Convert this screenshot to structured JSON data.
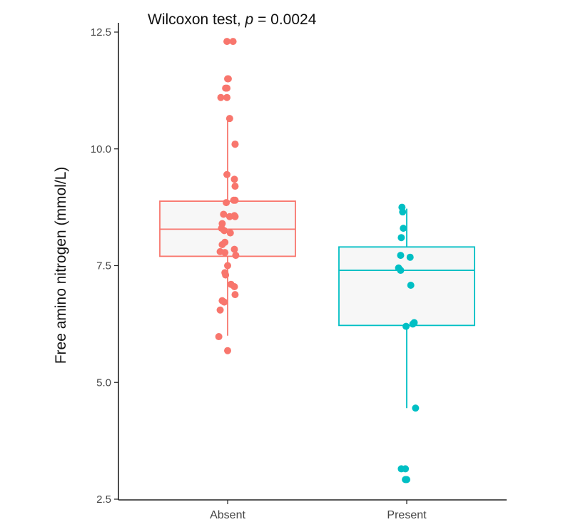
{
  "chart_data": {
    "type": "box",
    "title_prefix": "Wilcoxon test, ",
    "title_p": "p",
    "title_value": " = 0.0024",
    "xlabel": "",
    "ylabel": "Free amino nitrogen (mmol/L)",
    "ylim": [
      2.5,
      12.5
    ],
    "yticks": [
      2.5,
      5.0,
      7.5,
      10.0,
      12.5
    ],
    "ytick_labels": [
      "2.5",
      "5.0",
      "7.5",
      "10.0",
      "12.5"
    ],
    "categories": [
      "Absent",
      "Present"
    ],
    "series": [
      {
        "name": "Absent",
        "color": "#F8766D",
        "box": {
          "whisker_low": 6.0,
          "q1": 7.7,
          "median": 8.28,
          "q3": 8.88,
          "whisker_high": 10.65
        },
        "points": [
          {
            "jitter": -0.01,
            "y": 12.3
          },
          {
            "jitter": 0.08,
            "y": 12.3
          },
          {
            "jitter": 0.0,
            "y": 11.5
          },
          {
            "jitter": 0.01,
            "y": 11.5
          },
          {
            "jitter": -0.03,
            "y": 11.3
          },
          {
            "jitter": -0.01,
            "y": 11.3
          },
          {
            "jitter": -0.1,
            "y": 11.1
          },
          {
            "jitter": -0.01,
            "y": 11.1
          },
          {
            "jitter": 0.03,
            "y": 10.65
          },
          {
            "jitter": 0.11,
            "y": 10.1
          },
          {
            "jitter": 0.11,
            "y": 10.1
          },
          {
            "jitter": -0.01,
            "y": 9.45
          },
          {
            "jitter": 0.1,
            "y": 9.35
          },
          {
            "jitter": 0.11,
            "y": 9.2
          },
          {
            "jitter": 0.09,
            "y": 8.9
          },
          {
            "jitter": 0.11,
            "y": 8.9
          },
          {
            "jitter": -0.02,
            "y": 8.85
          },
          {
            "jitter": -0.06,
            "y": 8.6
          },
          {
            "jitter": 0.03,
            "y": 8.55
          },
          {
            "jitter": 0.1,
            "y": 8.57
          },
          {
            "jitter": 0.11,
            "y": 8.55
          },
          {
            "jitter": -0.08,
            "y": 8.4
          },
          {
            "jitter": -0.09,
            "y": 8.3
          },
          {
            "jitter": -0.05,
            "y": 8.25
          },
          {
            "jitter": 0.04,
            "y": 8.2
          },
          {
            "jitter": -0.04,
            "y": 8.0
          },
          {
            "jitter": -0.08,
            "y": 7.95
          },
          {
            "jitter": 0.1,
            "y": 7.85
          },
          {
            "jitter": -0.11,
            "y": 7.8
          },
          {
            "jitter": -0.04,
            "y": 7.78
          },
          {
            "jitter": 0.12,
            "y": 7.72
          },
          {
            "jitter": -0.03,
            "y": 7.3
          },
          {
            "jitter": 0.0,
            "y": 7.5
          },
          {
            "jitter": -0.04,
            "y": 7.35
          },
          {
            "jitter": 0.05,
            "y": 7.1
          },
          {
            "jitter": 0.1,
            "y": 7.05
          },
          {
            "jitter": 0.11,
            "y": 6.88
          },
          {
            "jitter": -0.08,
            "y": 6.75
          },
          {
            "jitter": -0.05,
            "y": 6.72
          },
          {
            "jitter": -0.11,
            "y": 6.55
          },
          {
            "jitter": -0.13,
            "y": 5.98
          },
          {
            "jitter": 0.0,
            "y": 5.68
          }
        ]
      },
      {
        "name": "Present",
        "color": "#00BFC4",
        "box": {
          "whisker_low": 4.45,
          "q1": 6.22,
          "median": 7.4,
          "q3": 7.9,
          "whisker_high": 8.72
        },
        "points": [
          {
            "jitter": -0.07,
            "y": 8.75
          },
          {
            "jitter": -0.06,
            "y": 8.65
          },
          {
            "jitter": -0.05,
            "y": 8.3
          },
          {
            "jitter": -0.08,
            "y": 8.1
          },
          {
            "jitter": -0.09,
            "y": 7.72
          },
          {
            "jitter": 0.05,
            "y": 7.68
          },
          {
            "jitter": -0.12,
            "y": 7.45
          },
          {
            "jitter": -0.09,
            "y": 7.4
          },
          {
            "jitter": 0.06,
            "y": 7.08
          },
          {
            "jitter": 0.11,
            "y": 6.28
          },
          {
            "jitter": 0.09,
            "y": 6.25
          },
          {
            "jitter": -0.01,
            "y": 6.2
          },
          {
            "jitter": 0.13,
            "y": 4.45
          },
          {
            "jitter": -0.08,
            "y": 3.15
          },
          {
            "jitter": -0.02,
            "y": 3.15
          },
          {
            "jitter": -0.02,
            "y": 2.92
          },
          {
            "jitter": 0.0,
            "y": 2.92
          }
        ]
      }
    ]
  }
}
